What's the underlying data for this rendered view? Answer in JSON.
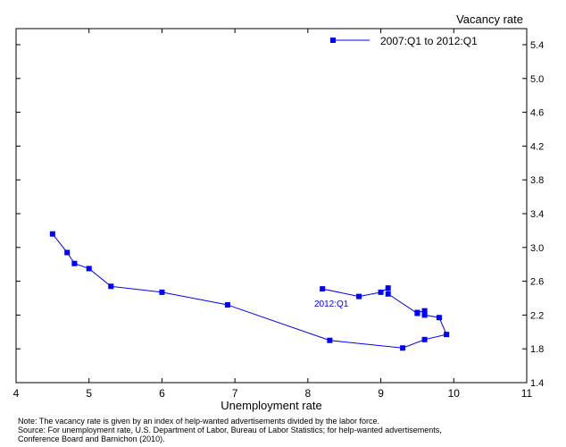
{
  "chart_data": {
    "type": "line",
    "title": "",
    "xlabel": "Unemployment rate",
    "ylabel": "Vacancy rate",
    "xlim": [
      4,
      11
    ],
    "ylim": [
      1.4,
      5.6
    ],
    "xticks": [
      "4",
      "5",
      "6",
      "7",
      "8",
      "9",
      "10",
      "11"
    ],
    "yticks": [
      "1.4",
      "1.8",
      "2.2",
      "2.6",
      "3.0",
      "3.4",
      "3.8",
      "4.2",
      "4.6",
      "5.0",
      "5.4"
    ],
    "series": [
      {
        "name": "2007:Q1 to 2012:Q1",
        "color": "#0000ff",
        "x": [
          4.5,
          4.7,
          4.8,
          5.0,
          5.3,
          6.0,
          6.9,
          8.3,
          9.3,
          9.6,
          9.9,
          9.8,
          9.6,
          9.6,
          9.5,
          9.5,
          9.1,
          9.1,
          9.0,
          8.7,
          8.2
        ],
        "y": [
          3.16,
          2.94,
          2.81,
          2.75,
          2.54,
          2.47,
          2.32,
          1.9,
          1.81,
          1.91,
          1.97,
          2.17,
          2.2,
          2.25,
          2.23,
          2.22,
          2.45,
          2.52,
          2.47,
          2.42,
          2.51
        ]
      }
    ],
    "annotations": [
      {
        "text": "2012:Q1"
      }
    ],
    "legend": "top-right",
    "grid": false
  },
  "notes": {
    "note": "Note:  The vacancy rate is given by an index of help-wanted advertisements divided by the labor force.",
    "source1": "Source:  For unemployment rate, U.S. Department of Labor, Bureau of Labor Statistics; for help-wanted advertisements,",
    "source2": "Conference Board and Barnichon (2010)."
  }
}
